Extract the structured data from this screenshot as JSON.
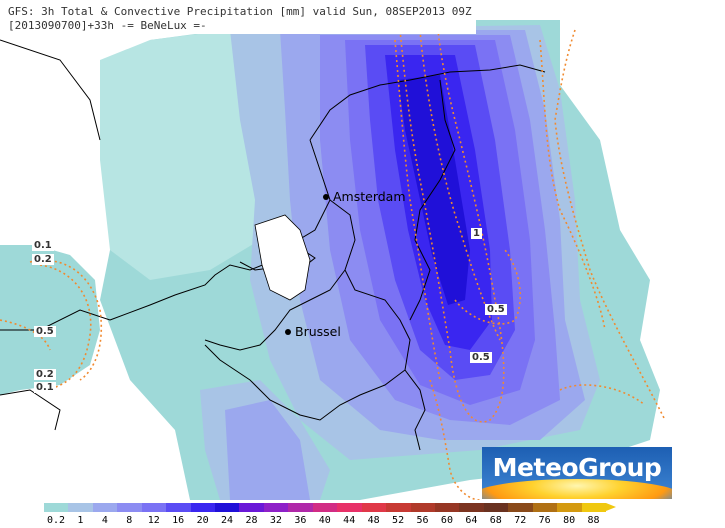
{
  "header": {
    "line1": "GFS: 3h Total & Convective Precipitation [mm] valid Sun, 08SEP2013 09Z",
    "line2": "[2013090700]+33h -= BeNeLux =-"
  },
  "cities": [
    {
      "name": "Amsterdam"
    },
    {
      "name": "Brussel"
    }
  ],
  "contour_labels": [
    "1",
    "0.5",
    "0.5",
    "0.1",
    "0.2",
    "0.5",
    "0.2",
    "0.1"
  ],
  "logo": {
    "text": "MeteoGroup"
  },
  "legend": {
    "labels": [
      "0.2",
      "1",
      "4",
      "8",
      "12",
      "16",
      "20",
      "24",
      "28",
      "32",
      "36",
      "40",
      "44",
      "48",
      "52",
      "56",
      "60",
      "64",
      "68",
      "72",
      "76",
      "80",
      "88"
    ],
    "colors": [
      "#9ed9d8",
      "#a8c4e6",
      "#9ba8ee",
      "#8c8cf2",
      "#7a72f4",
      "#5a4cf4",
      "#3a26f0",
      "#2010d8",
      "#6a18d8",
      "#8e20c8",
      "#b028a8",
      "#d22c84",
      "#e83068",
      "#e03848",
      "#c83a34",
      "#b03a2a",
      "#963624",
      "#7c3420",
      "#6a3220",
      "#8a4a1a",
      "#b07014",
      "#d49a10",
      "#f0c810"
    ]
  }
}
